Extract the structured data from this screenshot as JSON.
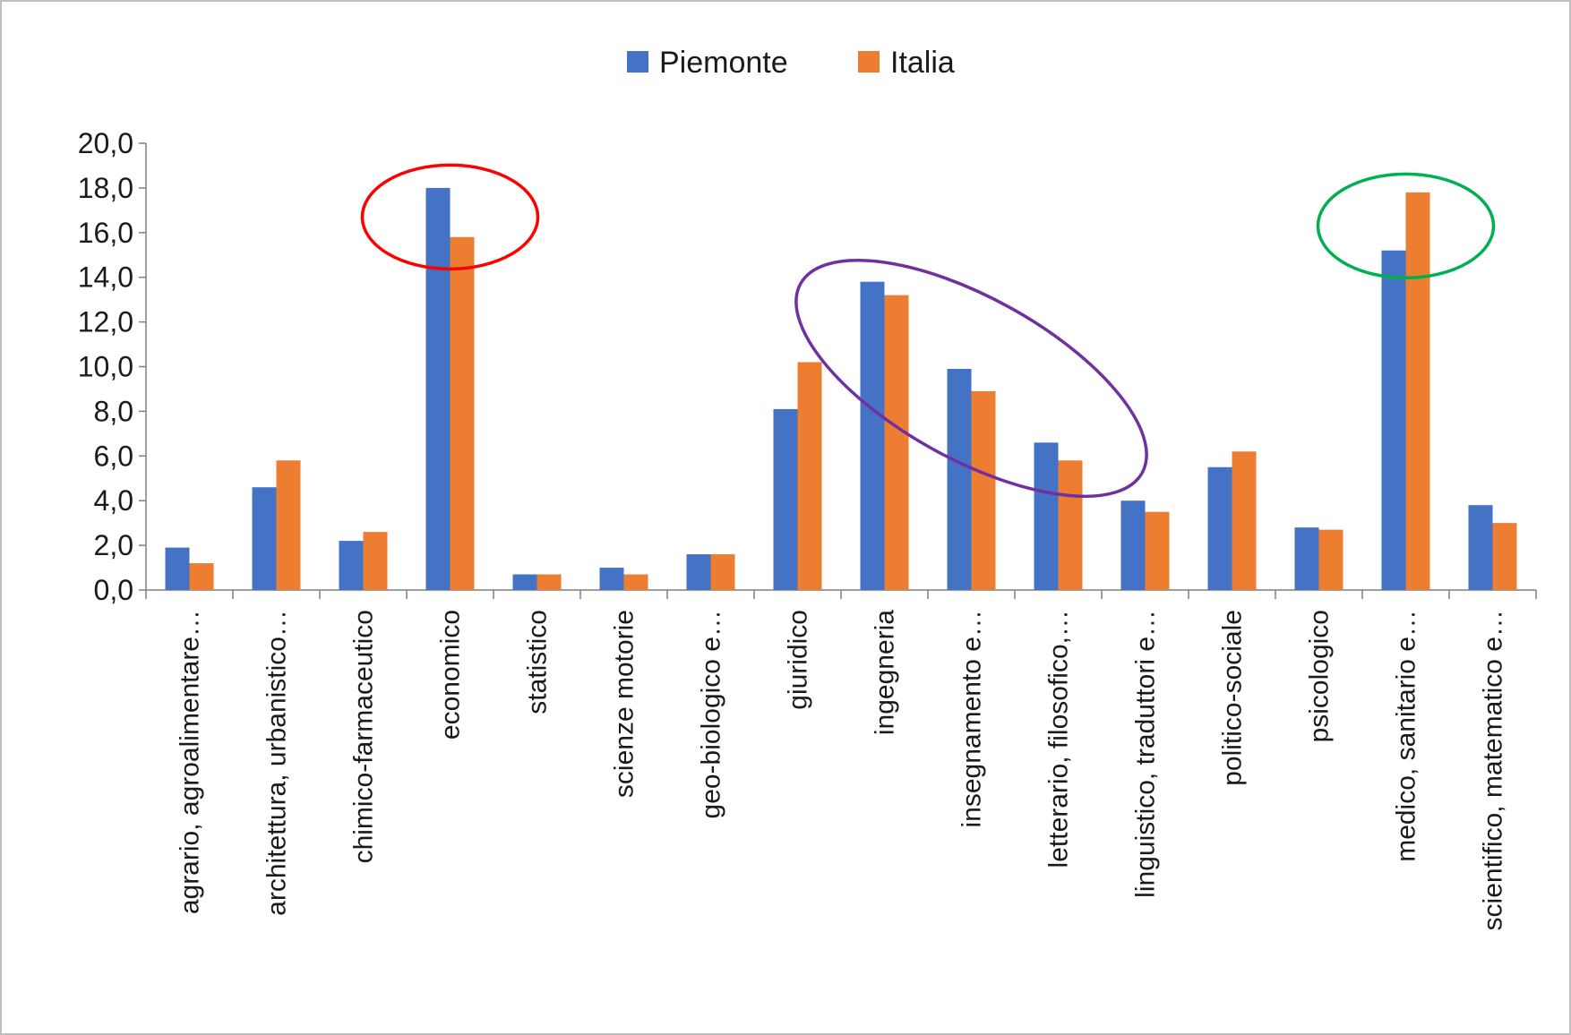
{
  "chart_data": {
    "type": "bar",
    "categories": [
      "agrario, agroalimentare…",
      "architettura, urbanistico…",
      "chimico-farmaceutico",
      "economico",
      "statistico",
      "scienze motorie",
      "geo-biologico e…",
      "giuridico",
      "ingegneria",
      "insegnamento e…",
      "letterario, filosofico,…",
      "linguistico, traduttori e…",
      "politico-sociale",
      "psicologico",
      "medico, sanitario e…",
      "scientifico, matematico e…"
    ],
    "series": [
      {
        "name": "Piemonte",
        "color": "#4472C4",
        "values": [
          1.9,
          4.6,
          2.2,
          18.0,
          0.7,
          1.0,
          1.6,
          8.1,
          13.8,
          9.9,
          6.6,
          4.0,
          5.5,
          2.8,
          15.2,
          3.8
        ]
      },
      {
        "name": "Italia",
        "color": "#ED7D31",
        "values": [
          1.2,
          5.8,
          2.6,
          15.8,
          0.7,
          0.7,
          1.6,
          10.2,
          13.2,
          8.9,
          5.8,
          3.5,
          6.2,
          2.7,
          17.8,
          3.0
        ]
      }
    ],
    "title": "",
    "xlabel": "",
    "ylabel": "",
    "ylim": [
      0,
      20
    ],
    "yticks": [
      "0,0",
      "2,0",
      "4,0",
      "6,0",
      "8,0",
      "10,0",
      "12,0",
      "14,0",
      "16,0",
      "18,0",
      "20,0"
    ],
    "ytick_values": [
      0,
      2,
      4,
      6,
      8,
      10,
      12,
      14,
      16,
      18,
      20
    ],
    "grid": false,
    "legend": "top-center",
    "annotations": [
      {
        "shape": "ellipse",
        "color": "#FF0000",
        "around_category": "economico"
      },
      {
        "shape": "ellipse",
        "color": "#7030A0",
        "around_categories": [
          "ingegneria",
          "insegnamento e…",
          "letterario, filosofico,…"
        ]
      },
      {
        "shape": "ellipse",
        "color": "#00B050",
        "around_category": "medico, sanitario e…"
      }
    ]
  }
}
